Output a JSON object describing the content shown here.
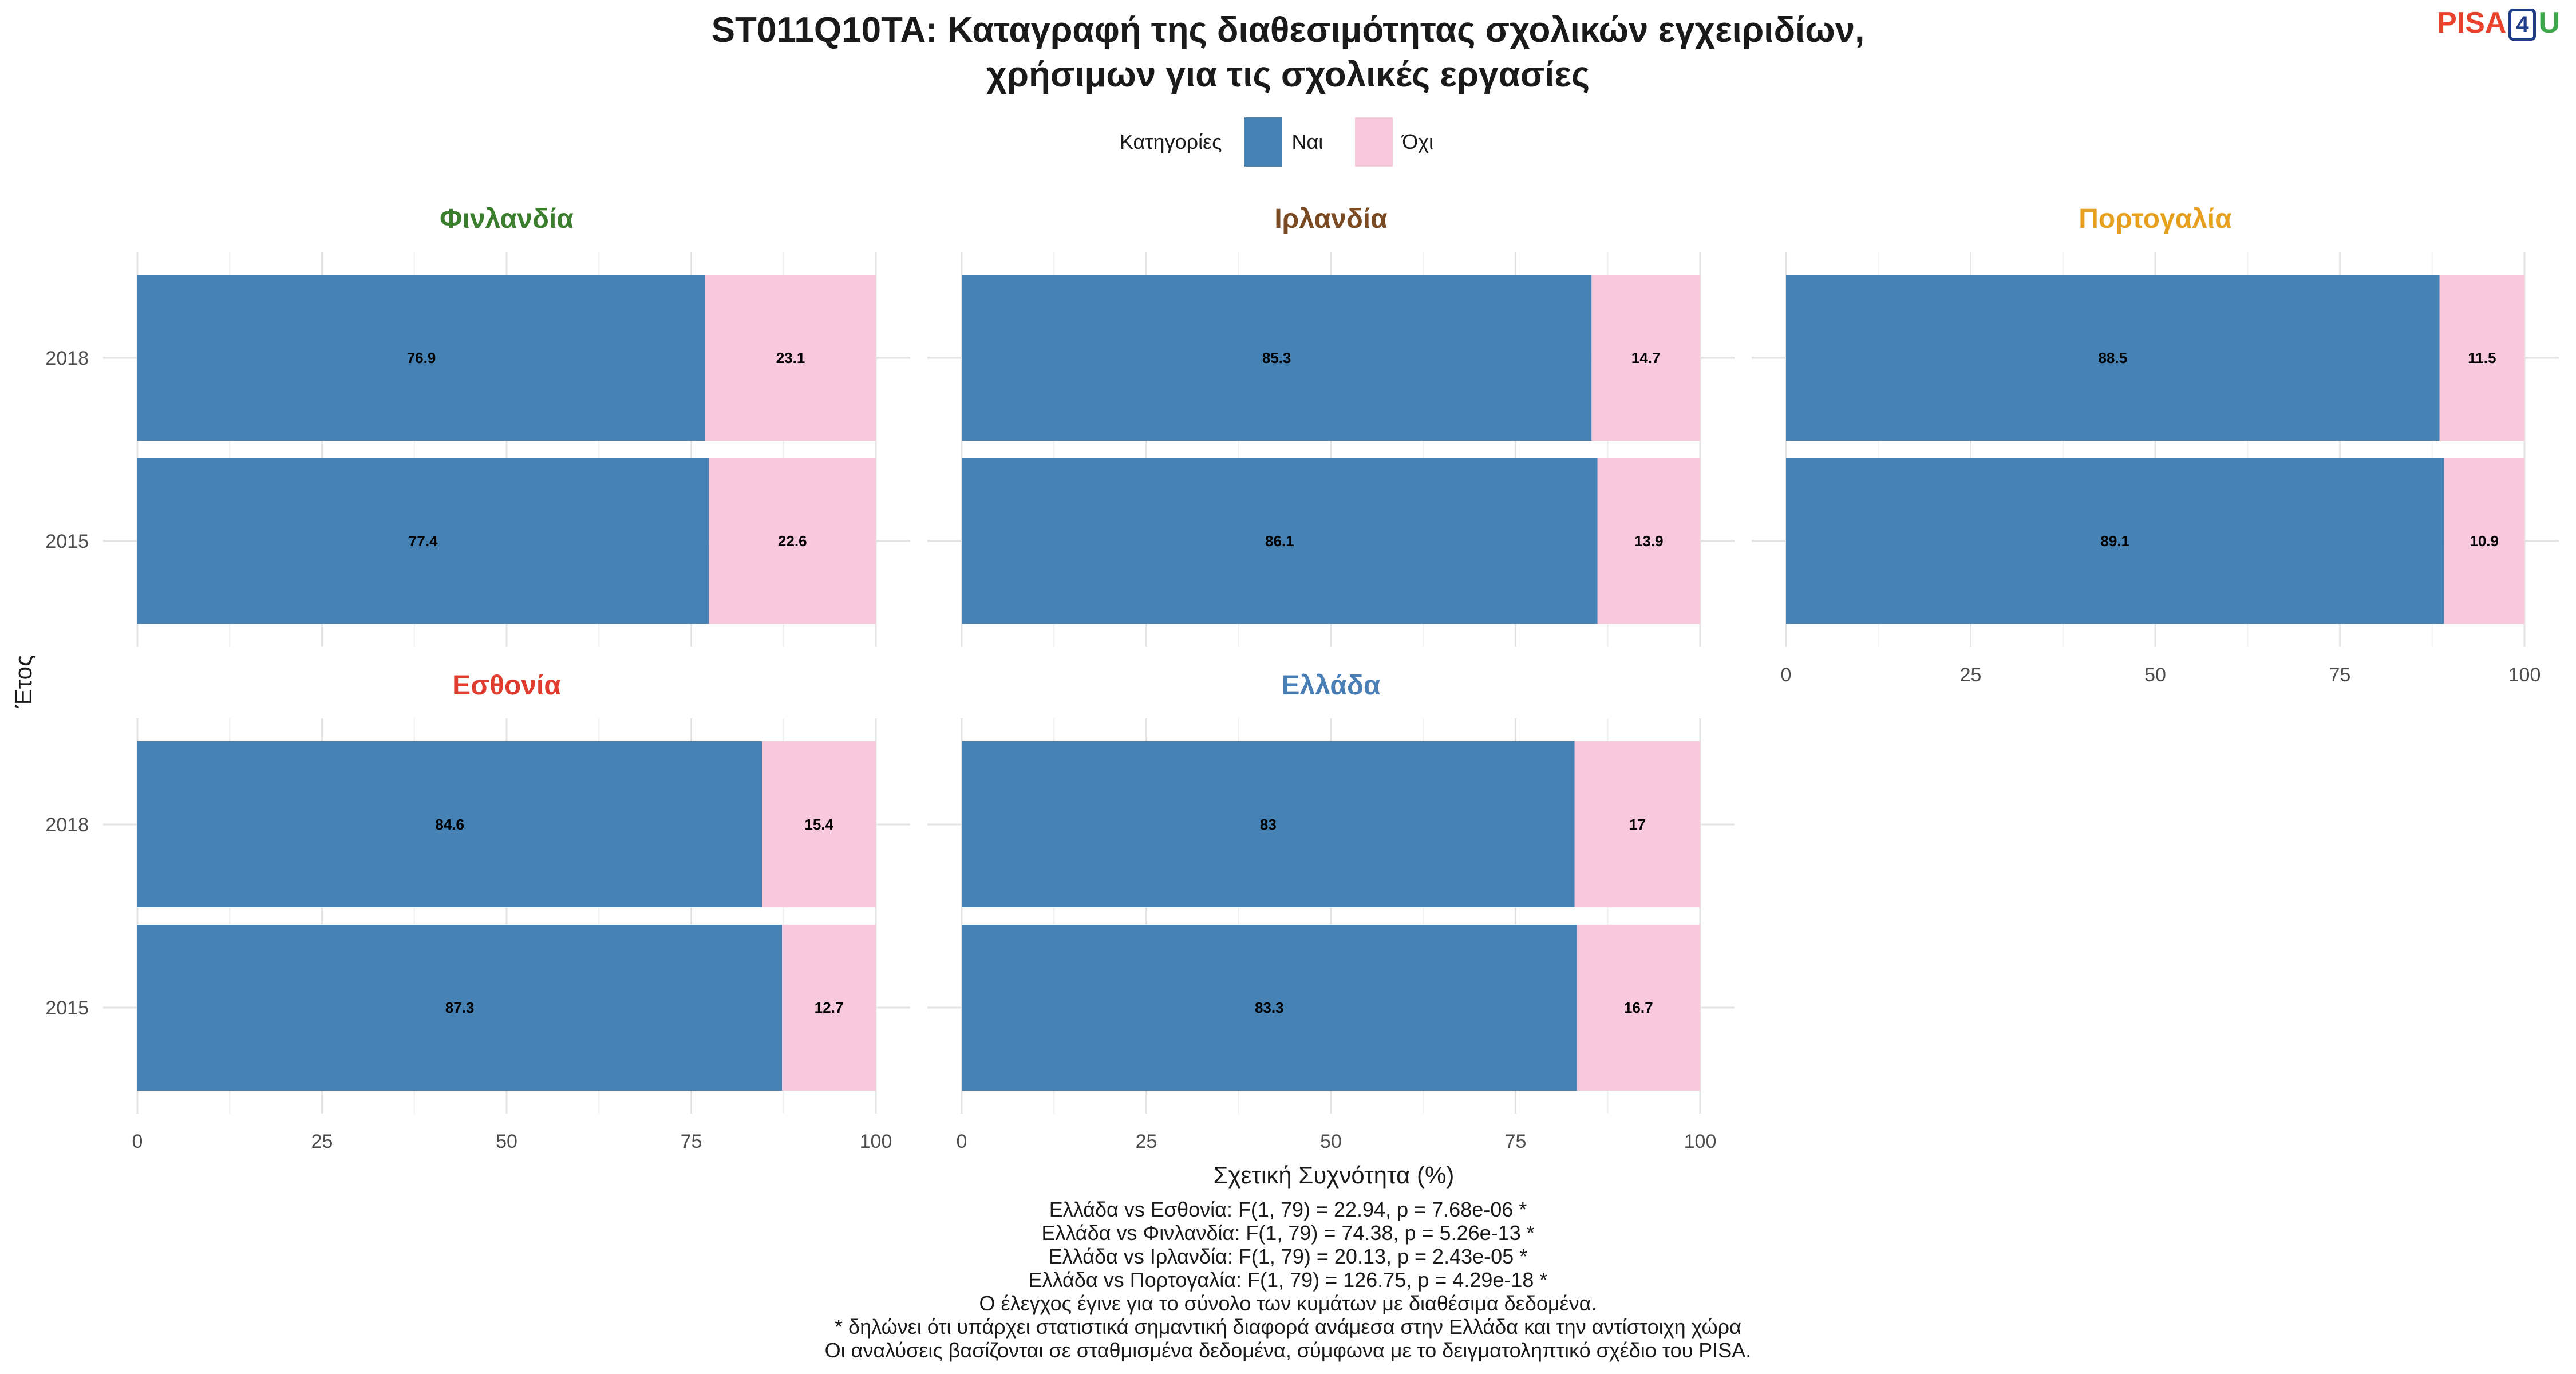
{
  "title_lines": [
    "ST011Q10TA: Καταγραφή της διαθεσιμότητας σχολικών εγχειριδίων,",
    "χρήσιμων για τις σχολικές εργασίες"
  ],
  "logo": {
    "pisa": "PISA",
    "four": "4",
    "u": "U"
  },
  "legend": {
    "title": "Κατηγορίες",
    "items": [
      {
        "label": "Ναι",
        "color": "#4682B4"
      },
      {
        "label": "Όχι",
        "color": "#F8C8DC"
      }
    ]
  },
  "chart_data": {
    "type": "bar",
    "orientation": "horizontal",
    "stacked": true,
    "xlabel": "Σχετική Συχνότητα (%)",
    "ylabel": "Έτος",
    "xlim": [
      0,
      100
    ],
    "xticks": [
      0,
      25,
      50,
      75,
      100
    ],
    "categories": [
      "2018",
      "2015"
    ],
    "grid": true,
    "legend_position": "top",
    "series_names": [
      "Ναι",
      "Όχι"
    ],
    "series_colors": [
      "#4682B4",
      "#F8C8DC"
    ],
    "panels": [
      {
        "name": "Φινλανδία",
        "color": "#3a7d2c",
        "values": {
          "Ναι": [
            76.9,
            77.4
          ],
          "Όχι": [
            23.1,
            22.6
          ]
        }
      },
      {
        "name": "Ιρλανδία",
        "color": "#7a4a22",
        "values": {
          "Ναι": [
            85.3,
            86.1
          ],
          "Όχι": [
            14.7,
            13.9
          ]
        }
      },
      {
        "name": "Πορτογαλία",
        "color": "#e6a01e",
        "values": {
          "Ναι": [
            88.5,
            89.1
          ],
          "Όχι": [
            11.5,
            10.9
          ]
        }
      },
      {
        "name": "Εσθονία",
        "color": "#e03c2f",
        "values": {
          "Ναι": [
            84.6,
            87.3
          ],
          "Όχι": [
            15.4,
            12.7
          ]
        }
      },
      {
        "name": "Ελλάδα",
        "color": "#4a7fb5",
        "values": {
          "Ναι": [
            83,
            83.3
          ],
          "Όχι": [
            17,
            16.7
          ]
        }
      }
    ]
  },
  "caption_lines": [
    "Ελλάδα vs Εσθονία: F(1, 79) = 22.94, p = 7.68e-06 *",
    "Ελλάδα vs Φινλανδία: F(1, 79) = 74.38, p = 5.26e-13 *",
    "Ελλάδα vs Ιρλανδία: F(1, 79) = 20.13, p = 2.43e-05 *",
    "Ελλάδα vs Πορτογαλία: F(1, 79) = 126.75, p = 4.29e-18 *",
    "Ο έλεγχος έγινε για το σύνολο των κυμάτων με διαθέσιμα δεδομένα.",
    "* δηλώνει ότι υπάρχει στατιστικά σημαντική διαφορά ανάμεσα στην Ελλάδα και την αντίστοιχη χώρα",
    "Οι αναλύσεις βασίζονται σε σταθμισμένα δεδομένα, σύμφωνα με το δειγματοληπτικό σχέδιο του PISA."
  ]
}
